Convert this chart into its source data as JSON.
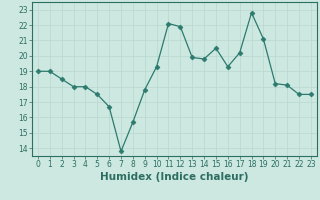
{
  "x": [
    0,
    1,
    2,
    3,
    4,
    5,
    6,
    7,
    8,
    9,
    10,
    11,
    12,
    13,
    14,
    15,
    16,
    17,
    18,
    19,
    20,
    21,
    22,
    23
  ],
  "y": [
    19.0,
    19.0,
    18.5,
    18.0,
    18.0,
    17.5,
    16.7,
    13.8,
    15.7,
    17.8,
    19.3,
    22.1,
    21.9,
    19.9,
    19.8,
    20.5,
    19.3,
    20.2,
    22.8,
    21.1,
    18.2,
    18.1,
    17.5,
    17.5
  ],
  "line_color": "#2d7a6e",
  "marker": "D",
  "marker_size": 2.5,
  "bg_color": "#cce8e0",
  "grid_color": "#b8d8d0",
  "xlabel": "Humidex (Indice chaleur)",
  "xlim": [
    -0.5,
    23.5
  ],
  "ylim": [
    13.5,
    23.5
  ],
  "yticks": [
    14,
    15,
    16,
    17,
    18,
    19,
    20,
    21,
    22,
    23
  ],
  "xticks": [
    0,
    1,
    2,
    3,
    4,
    5,
    6,
    7,
    8,
    9,
    10,
    11,
    12,
    13,
    14,
    15,
    16,
    17,
    18,
    19,
    20,
    21,
    22,
    23
  ],
  "tick_color": "#2d6e62",
  "axis_color": "#2d6e62",
  "xlabel_fontsize": 7.5,
  "tick_fontsize": 5.5
}
